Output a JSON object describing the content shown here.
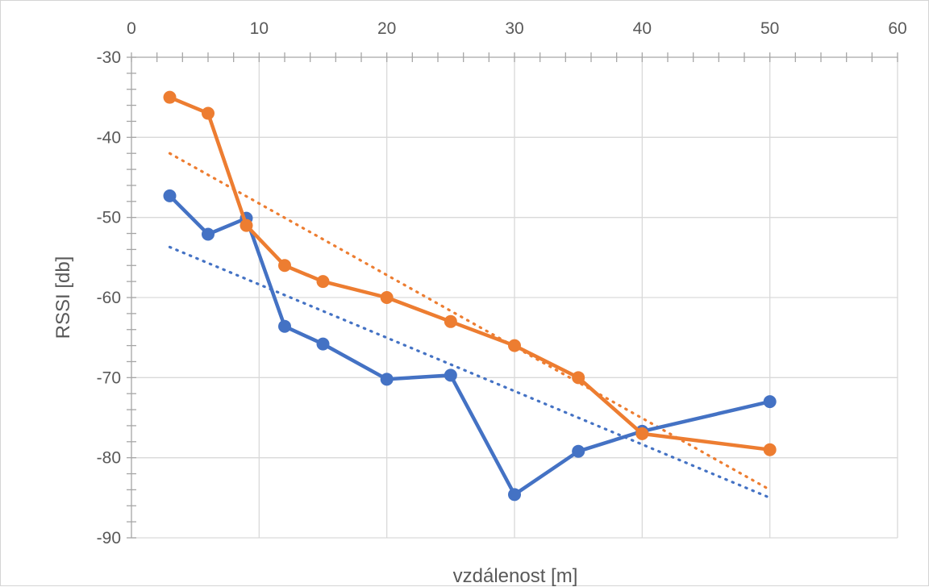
{
  "chart_data": {
    "type": "line",
    "title": "",
    "xlabel": "vzdálenost [m]",
    "ylabel": "RSSI [db]",
    "xlim": [
      0,
      60
    ],
    "ylim": [
      -90,
      -30
    ],
    "x_ticks": [
      0,
      10,
      20,
      30,
      40,
      50,
      60
    ],
    "y_ticks": [
      -30,
      -40,
      -50,
      -60,
      -70,
      -80,
      -90
    ],
    "grid": true,
    "legend": "none",
    "x_axis_position": "top",
    "series": [
      {
        "color": "#4472c4",
        "x": [
          3,
          6,
          9,
          12,
          15,
          20,
          25,
          30,
          35,
          40,
          50
        ],
        "y": [
          -47.3,
          -52.1,
          -50.1,
          -63.6,
          -65.8,
          -70.2,
          -69.7,
          -84.6,
          -79.2,
          -76.7,
          -73.0
        ],
        "trendline": {
          "type": "linear",
          "style": "dotted",
          "from": [
            3,
            -53.7
          ],
          "to": [
            50,
            -85.0
          ]
        }
      },
      {
        "color": "#ed7d31",
        "x": [
          3,
          6,
          9,
          12,
          15,
          20,
          25,
          30,
          35,
          40,
          50
        ],
        "y": [
          -35,
          -37,
          -51,
          -56,
          -58,
          -60,
          -63,
          -66,
          -70,
          -77,
          -79
        ],
        "trendline": {
          "type": "linear",
          "style": "dotted",
          "from": [
            3,
            -42.0
          ],
          "to": [
            50,
            -84.0
          ]
        }
      }
    ]
  }
}
